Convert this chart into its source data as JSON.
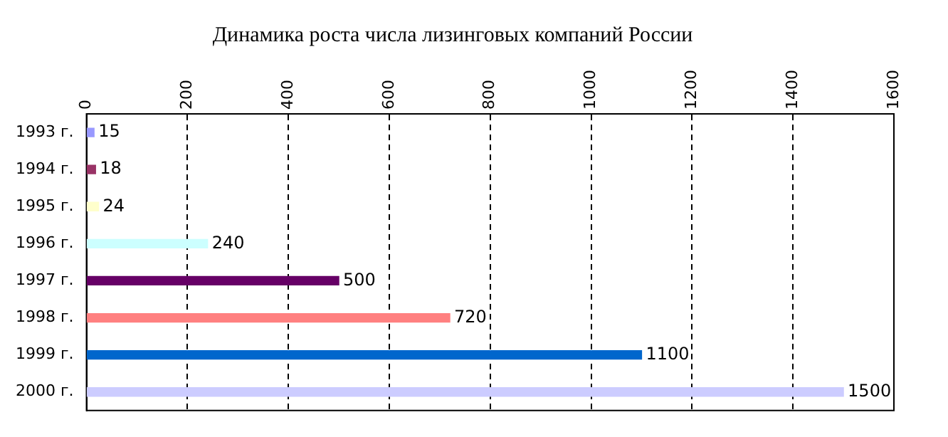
{
  "chart_data": {
    "type": "bar",
    "orientation": "horizontal",
    "title": "Динамика роста числа лизинговых компаний России",
    "categories": [
      "1993 г.",
      "1994 г.",
      "1995 г.",
      "1996 г.",
      "1997 г.",
      "1998 г.",
      "1999 г.",
      "2000 г."
    ],
    "values": [
      15,
      18,
      24,
      240,
      500,
      720,
      1100,
      1500
    ],
    "colors": [
      "#9999ff",
      "#993366",
      "#ffffcc",
      "#ccffff",
      "#660066",
      "#ff8080",
      "#0066cc",
      "#ccccff"
    ],
    "xlim": [
      0,
      1600
    ],
    "xticks": [
      0,
      200,
      400,
      600,
      800,
      1000,
      1200,
      1400,
      1600
    ],
    "grid": "x",
    "legend": false,
    "data_labels": true
  }
}
